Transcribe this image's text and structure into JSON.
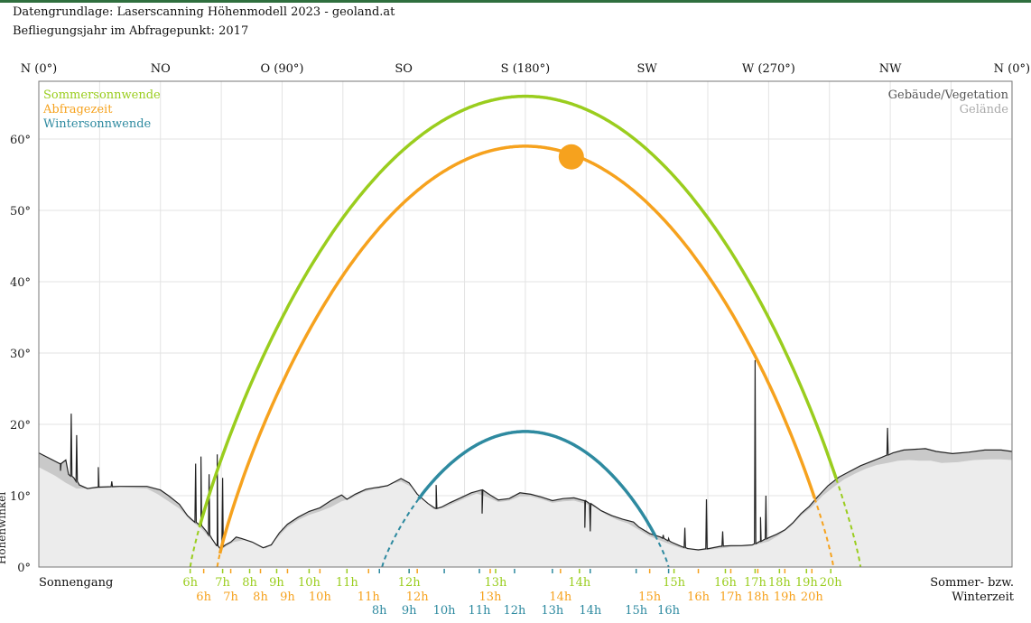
{
  "header": {
    "source_line": "Datengrundlage: Laserscanning Höhenmodell 2023 - geoland.at",
    "flight_line": "Befliegungsjahr im Abfragepunkt: 2017"
  },
  "chart_data": {
    "type": "line",
    "x_axis_labels": [
      "N (0°)",
      "NO",
      "O (90°)",
      "SO",
      "S (180°)",
      "SW",
      "W (270°)",
      "NW",
      "N (0°)"
    ],
    "xlim": [
      0,
      360
    ],
    "ylim": [
      0,
      67
    ],
    "y_ticks": [
      "0°",
      "10°",
      "20°",
      "30°",
      "40°",
      "50°",
      "60°"
    ],
    "ylabel": "Höhenwinkel",
    "legend_left": [
      "Sommersonnwende",
      "Abfragezeit",
      "Wintersonnwende"
    ],
    "legend_right": [
      "Gebäude/Vegetation",
      "Gelände"
    ],
    "bottom_left_label": "Sonnengang",
    "bottom_right_label": [
      "Sommer- bzw.",
      "Winterzeit"
    ],
    "colors": {
      "sommer": "#9acd1e",
      "abfrage": "#f6a21e",
      "winter": "#2e8aa0",
      "vegetation_fill": "#c9c9c9",
      "terrain_fill": "#ececec",
      "outline": "#222222",
      "grid": "#e3e3e3"
    },
    "series": [
      {
        "name": "Sommersonnwende",
        "max_elevation": 66,
        "azimuth_range": [
          56,
          304
        ]
      },
      {
        "name": "Abfragezeit",
        "max_elevation": 59,
        "azimuth_range": [
          66,
          294
        ]
      },
      {
        "name": "Wintersonnwende",
        "max_elevation": 19,
        "azimuth_range": [
          127,
          233
        ]
      }
    ],
    "sun_position": {
      "azimuth": 197,
      "elevation": 57.5
    },
    "horizon": [
      [
        0,
        16
      ],
      [
        8,
        14.5
      ],
      [
        10,
        15
      ],
      [
        11,
        13
      ],
      [
        13,
        12.5
      ],
      [
        15,
        11.5
      ],
      [
        18,
        11
      ],
      [
        22,
        11.2
      ],
      [
        30,
        11.3
      ],
      [
        40,
        11.3
      ],
      [
        45,
        10.8
      ],
      [
        48,
        10
      ],
      [
        52,
        8.8
      ],
      [
        55,
        7.2
      ],
      [
        57,
        6.5
      ],
      [
        60,
        5.8
      ],
      [
        62,
        5
      ],
      [
        64,
        4
      ],
      [
        66,
        3
      ],
      [
        67,
        2.6
      ],
      [
        69,
        3.1
      ],
      [
        71,
        3.5
      ],
      [
        73,
        4.2
      ],
      [
        75,
        4
      ],
      [
        79,
        3.5
      ],
      [
        83,
        2.7
      ],
      [
        86,
        3.1
      ],
      [
        89,
        4.8
      ],
      [
        92,
        6
      ],
      [
        96,
        7
      ],
      [
        100,
        7.8
      ],
      [
        104,
        8.3
      ],
      [
        108,
        9.3
      ],
      [
        112,
        10.1
      ],
      [
        114,
        9.5
      ],
      [
        117,
        10.2
      ],
      [
        121,
        10.9
      ],
      [
        124,
        11.1
      ],
      [
        126,
        11.2
      ],
      [
        129,
        11.4
      ],
      [
        134,
        12.4
      ],
      [
        137,
        11.8
      ],
      [
        140,
        10.2
      ],
      [
        144,
        8.9
      ],
      [
        147,
        8.2
      ],
      [
        149,
        8.4
      ],
      [
        152,
        9
      ],
      [
        156,
        9.7
      ],
      [
        160,
        10.4
      ],
      [
        164,
        10.8
      ],
      [
        167,
        10.1
      ],
      [
        170,
        9.4
      ],
      [
        174,
        9.6
      ],
      [
        178,
        10.4
      ],
      [
        182,
        10.2
      ],
      [
        186,
        9.8
      ],
      [
        190,
        9.3
      ],
      [
        194,
        9.6
      ],
      [
        198,
        9.7
      ],
      [
        202,
        9.3
      ],
      [
        205,
        8.7
      ],
      [
        208,
        7.9
      ],
      [
        212,
        7.2
      ],
      [
        216,
        6.7
      ],
      [
        220,
        6.3
      ],
      [
        222,
        5.6
      ],
      [
        226,
        4.7
      ],
      [
        230,
        4.2
      ],
      [
        234,
        3.5
      ],
      [
        237,
        3
      ],
      [
        240,
        2.6
      ],
      [
        244,
        2.4
      ],
      [
        248,
        2.6
      ],
      [
        252,
        2.9
      ],
      [
        256,
        3
      ],
      [
        260,
        3
      ],
      [
        264,
        3.1
      ],
      [
        267,
        3.6
      ],
      [
        270,
        4.1
      ],
      [
        273,
        4.6
      ],
      [
        276,
        5.2
      ],
      [
        279,
        6.2
      ],
      [
        282,
        7.5
      ],
      [
        285,
        8.5
      ],
      [
        288,
        9.8
      ],
      [
        292,
        11.4
      ],
      [
        296,
        12.6
      ],
      [
        300,
        13.4
      ],
      [
        304,
        14.2
      ],
      [
        308,
        14.8
      ],
      [
        312,
        15.4
      ],
      [
        316,
        16
      ],
      [
        320,
        16.4
      ],
      [
        324,
        16.5
      ],
      [
        328,
        16.6
      ],
      [
        332,
        16.2
      ],
      [
        338,
        15.9
      ],
      [
        344,
        16.1
      ],
      [
        350,
        16.4
      ],
      [
        356,
        16.4
      ],
      [
        360,
        16.2
      ]
    ],
    "vegetation": [
      [
        0,
        14
      ],
      [
        6,
        12.8
      ],
      [
        10,
        11.8
      ],
      [
        14,
        11
      ],
      [
        20,
        11
      ],
      [
        30,
        11.2
      ],
      [
        40,
        11
      ],
      [
        44,
        10.2
      ],
      [
        48,
        9.2
      ],
      [
        52,
        8.2
      ],
      [
        56,
        6.6
      ],
      [
        60,
        5.4
      ],
      [
        64,
        3.8
      ],
      [
        68,
        2.6
      ],
      [
        72,
        3.5
      ],
      [
        76,
        3.8
      ],
      [
        80,
        3.3
      ],
      [
        84,
        2.6
      ],
      [
        88,
        4
      ],
      [
        92,
        5.6
      ],
      [
        96,
        6.6
      ],
      [
        100,
        7.3
      ],
      [
        104,
        7.8
      ],
      [
        108,
        8.4
      ],
      [
        112,
        9.2
      ],
      [
        116,
        9.7
      ],
      [
        120,
        10.5
      ],
      [
        124,
        10.9
      ],
      [
        126,
        11
      ],
      [
        130,
        11.6
      ],
      [
        134,
        12
      ],
      [
        138,
        11.2
      ],
      [
        142,
        9.8
      ],
      [
        146,
        8.1
      ],
      [
        150,
        8.3
      ],
      [
        154,
        9
      ],
      [
        158,
        9.7
      ],
      [
        162,
        10.3
      ],
      [
        166,
        9.8
      ],
      [
        170,
        9.1
      ],
      [
        174,
        9.3
      ],
      [
        178,
        9.9
      ],
      [
        182,
        9.9
      ],
      [
        186,
        9.5
      ],
      [
        190,
        9
      ],
      [
        194,
        9.2
      ],
      [
        198,
        9.3
      ],
      [
        202,
        8.9
      ],
      [
        206,
        8.3
      ],
      [
        210,
        7.3
      ],
      [
        214,
        6.6
      ],
      [
        218,
        6.1
      ],
      [
        222,
        5.2
      ],
      [
        226,
        4.3
      ],
      [
        230,
        3.7
      ],
      [
        234,
        3.1
      ],
      [
        238,
        2.6
      ],
      [
        244,
        2.3
      ],
      [
        250,
        2.5
      ],
      [
        256,
        2.8
      ],
      [
        262,
        2.9
      ],
      [
        266,
        3.2
      ],
      [
        270,
        3.6
      ],
      [
        274,
        4.5
      ],
      [
        278,
        5.6
      ],
      [
        282,
        7.2
      ],
      [
        286,
        8.4
      ],
      [
        290,
        10
      ],
      [
        294,
        11.2
      ],
      [
        298,
        12.3
      ],
      [
        302,
        13.1
      ],
      [
        306,
        13.8
      ],
      [
        310,
        14.3
      ],
      [
        314,
        14.6
      ],
      [
        318,
        14.9
      ],
      [
        322,
        15
      ],
      [
        326,
        14.9
      ],
      [
        330,
        14.9
      ],
      [
        334,
        14.6
      ],
      [
        340,
        14.7
      ],
      [
        346,
        15
      ],
      [
        352,
        15.1
      ],
      [
        356,
        15.1
      ],
      [
        360,
        15
      ]
    ],
    "spikes": [
      [
        8,
        13.5
      ],
      [
        12,
        21.5
      ],
      [
        14,
        18.5
      ],
      [
        22,
        14
      ],
      [
        27,
        12
      ],
      [
        58,
        14.5
      ],
      [
        60,
        15.5
      ],
      [
        63,
        13
      ],
      [
        66,
        15.8
      ],
      [
        68,
        12.5
      ],
      [
        147,
        11.5
      ],
      [
        164,
        7.5
      ],
      [
        202,
        5.5
      ],
      [
        204,
        5
      ],
      [
        231,
        4.5
      ],
      [
        233,
        4
      ],
      [
        239,
        5.5
      ],
      [
        247,
        9.5
      ],
      [
        253,
        5
      ],
      [
        265,
        29
      ],
      [
        267,
        7
      ],
      [
        269,
        10
      ],
      [
        314,
        19.5
      ]
    ],
    "time_rows": {
      "sommer": {
        "labels": [
          "6h",
          "7h",
          "8h",
          "9h",
          "10h",
          "11h",
          "12h",
          "13h",
          "14h",
          "15h",
          "16h",
          "17h",
          "18h",
          "19h",
          "20h"
        ],
        "azimuths": [
          56,
          68,
          78,
          88,
          100,
          114,
          137,
          169,
          200,
          235,
          254,
          265,
          274,
          284,
          293
        ]
      },
      "abfrage": {
        "labels": [
          "6h",
          "7h",
          "8h",
          "9h",
          "10h",
          "11h",
          "12h",
          "13h",
          "14h",
          "15h",
          "16h",
          "17h",
          "18h",
          "19h",
          "20h"
        ],
        "azimuths": [
          61,
          71,
          82,
          92,
          104,
          122,
          140,
          167,
          193,
          226,
          244,
          256,
          266,
          276,
          286
        ]
      },
      "winter": {
        "labels": [
          "8h",
          "9h",
          "10h",
          "11h",
          "12h",
          "13h",
          "14h",
          "15h",
          "16h"
        ],
        "azimuths": [
          126,
          137,
          150,
          163,
          176,
          190,
          204,
          221,
          233
        ]
      }
    }
  }
}
